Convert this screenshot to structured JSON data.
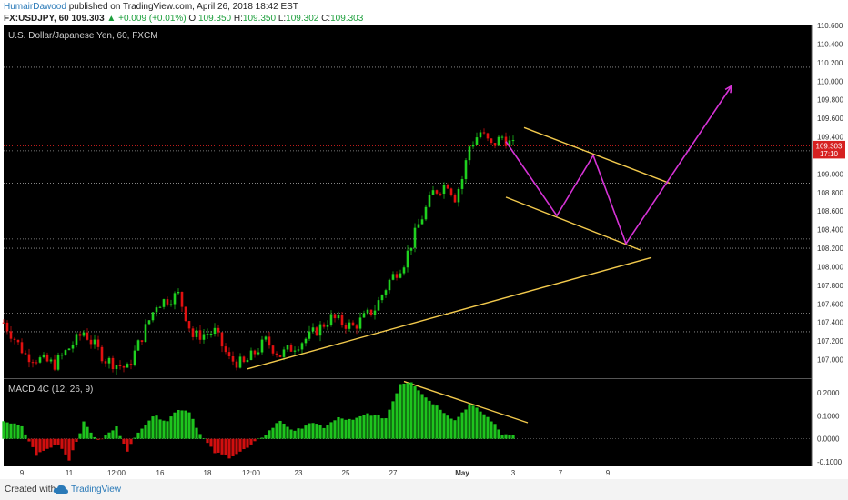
{
  "header": {
    "author": "HumairDawood",
    "published_text": "published on TradingView.com, April 26, 2018 18:42 EST",
    "symbol": "FX:USDJPY, 60",
    "last_price": "109.303",
    "change": "+0.009 (+0.01%)",
    "ohlc": [
      {
        "label": "O:",
        "value": "109.350"
      },
      {
        "label": "H:",
        "value": "109.350"
      },
      {
        "label": "L:",
        "value": "109.302"
      },
      {
        "label": "C:",
        "value": "109.303"
      }
    ]
  },
  "footer": {
    "created_with": "Created with",
    "brand": "TradingView"
  },
  "colors": {
    "background": "#000000",
    "up_candle": "#1fd11f",
    "down_candle": "#e01010",
    "macd_positive": "#1ec41e",
    "macd_negative": "#d10f0f",
    "trendline": "#f2c94c",
    "projection": "#d633d6",
    "price_label_bg": "#d62020"
  },
  "chart_data": [
    {
      "type": "candlestick",
      "title": "U.S. Dollar/Japanese Yen, 60, FXCM",
      "ylim": [
        106.8,
        110.6
      ],
      "y_ticks": [
        "110.600",
        "110.400",
        "110.200",
        "110.000",
        "109.800",
        "109.600",
        "109.400",
        "109.200",
        "109.000",
        "108.800",
        "108.600",
        "108.400",
        "108.200",
        "108.000",
        "107.800",
        "107.600",
        "107.400",
        "107.200",
        "107.000"
      ],
      "x_ticks": [
        "9",
        "11",
        "12:00",
        "16",
        "18",
        "12:00",
        "23",
        "25",
        "27",
        "May",
        "3",
        "7",
        "9"
      ],
      "price_labels": [
        {
          "text": "109.303",
          "value": 109.303
        },
        {
          "text": "17:10",
          "value": 109.22
        }
      ],
      "close_path": [
        {
          "x": 0,
          "y": 107.4
        },
        {
          "x": 6,
          "y": 107.05
        },
        {
          "x": 14,
          "y": 106.95
        },
        {
          "x": 22,
          "y": 107.3
        },
        {
          "x": 28,
          "y": 107.0
        },
        {
          "x": 34,
          "y": 106.9
        },
        {
          "x": 42,
          "y": 107.6
        },
        {
          "x": 48,
          "y": 107.7
        },
        {
          "x": 52,
          "y": 107.25
        },
        {
          "x": 58,
          "y": 107.3
        },
        {
          "x": 62,
          "y": 107.0
        },
        {
          "x": 66,
          "y": 106.95
        },
        {
          "x": 72,
          "y": 107.2
        },
        {
          "x": 76,
          "y": 107.05
        },
        {
          "x": 84,
          "y": 107.25
        },
        {
          "x": 90,
          "y": 107.45
        },
        {
          "x": 96,
          "y": 107.35
        },
        {
          "x": 102,
          "y": 107.55
        },
        {
          "x": 106,
          "y": 107.85
        },
        {
          "x": 110,
          "y": 108.05
        },
        {
          "x": 114,
          "y": 108.45
        },
        {
          "x": 118,
          "y": 108.8
        },
        {
          "x": 122,
          "y": 108.9
        },
        {
          "x": 124,
          "y": 108.75
        },
        {
          "x": 126,
          "y": 108.95
        },
        {
          "x": 128,
          "y": 109.3
        },
        {
          "x": 131,
          "y": 109.45
        },
        {
          "x": 134,
          "y": 109.3
        },
        {
          "x": 137,
          "y": 109.4
        },
        {
          "x": 140,
          "y": 109.3
        }
      ],
      "support_lines": [
        108.3,
        108.2,
        107.5,
        107.3,
        110.15,
        109.25,
        108.9
      ],
      "trendlines": [
        {
          "points": [
            {
              "x": 67,
              "y": 106.9
            },
            {
              "x": 178,
              "y": 108.1
            }
          ]
        },
        {
          "points": [
            {
              "x": 143,
              "y": 109.5
            },
            {
              "x": 183,
              "y": 108.9
            }
          ]
        },
        {
          "points": [
            {
              "x": 138,
              "y": 108.75
            },
            {
              "x": 175,
              "y": 108.18
            }
          ]
        }
      ],
      "projection": [
        {
          "x": 138,
          "y": 109.35
        },
        {
          "x": 152,
          "y": 108.55
        },
        {
          "x": 162,
          "y": 109.2
        },
        {
          "x": 171,
          "y": 108.25
        },
        {
          "x": 200,
          "y": 109.95
        }
      ]
    },
    {
      "type": "histogram",
      "title": "MACD 4C (12, 26, 9)",
      "ylim": [
        -0.12,
        0.26
      ],
      "y_ticks": [
        "0.2000",
        "0.1000",
        "0.0000",
        "-0.1000"
      ],
      "envelope": [
        {
          "x": 0,
          "y": 0.08
        },
        {
          "x": 5,
          "y": 0.05
        },
        {
          "x": 9,
          "y": -0.07
        },
        {
          "x": 15,
          "y": -0.02
        },
        {
          "x": 18,
          "y": -0.09
        },
        {
          "x": 22,
          "y": 0.07
        },
        {
          "x": 26,
          "y": -0.01
        },
        {
          "x": 31,
          "y": 0.05
        },
        {
          "x": 34,
          "y": -0.05
        },
        {
          "x": 38,
          "y": 0.05
        },
        {
          "x": 41,
          "y": 0.1
        },
        {
          "x": 45,
          "y": 0.08
        },
        {
          "x": 48,
          "y": 0.13
        },
        {
          "x": 51,
          "y": 0.12
        },
        {
          "x": 54,
          "y": 0.02
        },
        {
          "x": 58,
          "y": -0.06
        },
        {
          "x": 62,
          "y": -0.08
        },
        {
          "x": 67,
          "y": -0.04
        },
        {
          "x": 72,
          "y": 0.02
        },
        {
          "x": 76,
          "y": 0.08
        },
        {
          "x": 80,
          "y": 0.03
        },
        {
          "x": 84,
          "y": 0.07
        },
        {
          "x": 88,
          "y": 0.05
        },
        {
          "x": 92,
          "y": 0.09
        },
        {
          "x": 96,
          "y": 0.08
        },
        {
          "x": 100,
          "y": 0.11
        },
        {
          "x": 105,
          "y": 0.09
        },
        {
          "x": 109,
          "y": 0.24
        },
        {
          "x": 112,
          "y": 0.25
        },
        {
          "x": 116,
          "y": 0.18
        },
        {
          "x": 120,
          "y": 0.13
        },
        {
          "x": 124,
          "y": 0.08
        },
        {
          "x": 128,
          "y": 0.15
        },
        {
          "x": 131,
          "y": 0.12
        },
        {
          "x": 134,
          "y": 0.08
        },
        {
          "x": 137,
          "y": 0.02
        },
        {
          "x": 140,
          "y": 0.02
        }
      ],
      "trendlines": [
        {
          "points": [
            {
              "x": 110,
              "y": 0.25
            },
            {
              "x": 144,
              "y": 0.07
            }
          ]
        }
      ]
    }
  ]
}
